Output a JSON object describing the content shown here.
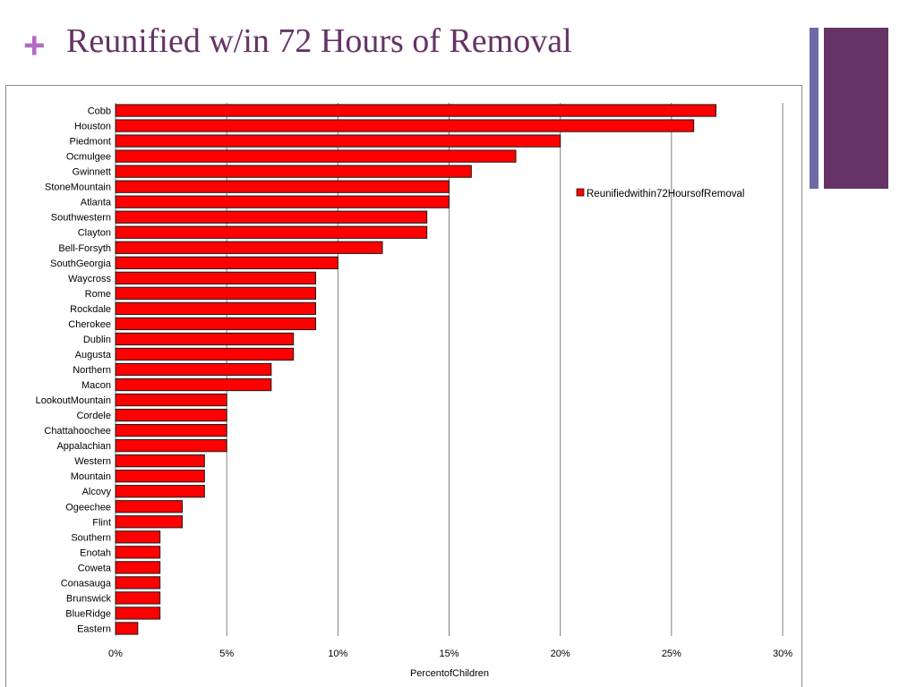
{
  "slide": {
    "plus_symbol": "+",
    "title": "Reunified w/in 72 Hours of Removal",
    "colors": {
      "title": "#663366",
      "plus": "#b36bc2",
      "deco_thin": "#6b6ba8",
      "deco_block": "#663366",
      "bar_fill": "#ff0000",
      "bar_stroke": "#1a1a1a",
      "gridline": "#7f7f7f"
    }
  },
  "chart_data": {
    "type": "bar",
    "orientation": "horizontal",
    "title": "",
    "xlabel": "Percent\u001fof\u001fChildren\u001f",
    "ylabel": "",
    "xlim": [
      0,
      30
    ],
    "xticks": [
      0,
      5,
      10,
      15,
      20,
      25,
      30
    ],
    "xtick_labels": [
      "0%\u001f",
      "5%\u001f",
      "10%\u001f",
      "15%\u001f",
      "20%\u001f",
      "25%\u001f",
      "30%\u001f"
    ],
    "grid": true,
    "legend": {
      "position": "right",
      "entries": [
        "Reunified\u001fwithin\u001f72\u001fHours\u001fof\u001fRemoval\u001f"
      ]
    },
    "categories": [
      "Cobb\u001f",
      "Houston\u001f",
      "Piedmont\u001f",
      "Ocmulgee\u001f",
      "Gwinnett\u001f",
      "Stone\u001fMountain\u001f",
      "Atlanta\u001f",
      "Southwestern\u001f",
      "Clayton\u001f",
      "Bell-Forsyth\u001f",
      "South\u001fGeorgia\u001f",
      "Waycross\u001f",
      "Rome\u001f",
      "Rockdale\u001f",
      "Cherokee\u001f",
      "Dublin\u001f",
      "Augusta\u001f",
      "Northern\u001f",
      "Macon\u001f",
      "Lookout\u001fMountain\u001f",
      "Cordele\u001f",
      "Chattahoochee\u001f",
      "Appalachian\u001f",
      "Western\u001f",
      "Mountain\u001f",
      "Alcovy\u001f",
      "Ogeechee\u001f",
      "Flint\u001f",
      "Southern\u001f",
      "Enotah\u001f",
      "Coweta\u001f",
      "Conasauga\u001f",
      "Brunswick\u001f",
      "Blue\u001fRidge\u001f",
      "Eastern\u001f"
    ],
    "series": [
      {
        "name": "Reunified\u001fwithin\u001f72\u001fHours\u001fof\u001fRemoval\u001f",
        "values": [
          27,
          26,
          20,
          18,
          16,
          15,
          15,
          14,
          14,
          12,
          10,
          9,
          9,
          9,
          9,
          8,
          8,
          7,
          7,
          5,
          5,
          5,
          5,
          4,
          4,
          4,
          3,
          3,
          2,
          2,
          2,
          2,
          2,
          2,
          1
        ]
      }
    ]
  }
}
